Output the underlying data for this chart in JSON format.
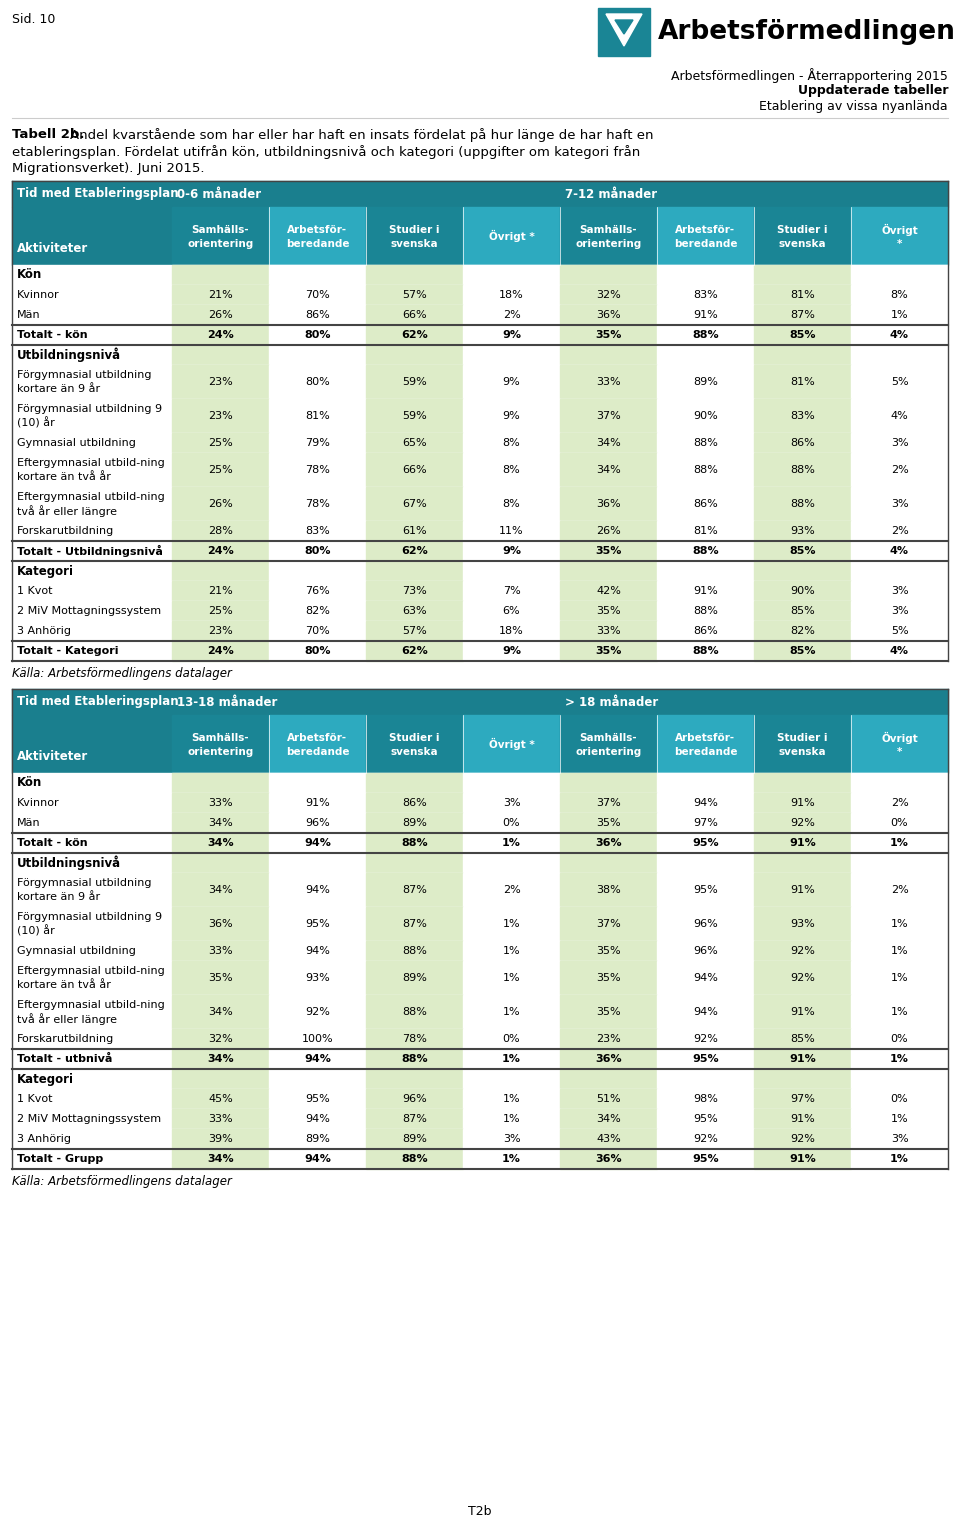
{
  "page_label": "Sid. 10",
  "logo_text": "Arbetsförmedlingen",
  "subtitle_lines": [
    "Arbetsförmedlingen - Återrapportering 2015",
    "Uppdaterade tabeller",
    "Etablering av vissa nyanlända"
  ],
  "caption_bold": "Tabell 2b.",
  "caption_rest": " Andel kvarstående som har eller har haft en insats fördelat på hur länge de har haft en etableringsplan. Fördelat utifrån kön, utbildningsnivå och kategori (uppgifter om kategori från Migrationsverket). Juni 2015.",
  "source_text": "Källa: Arbetsförmedlingens datalager",
  "header_bg": "#1a7f8e",
  "header_text": "#ffffff",
  "subheader_bg": "#2daabf",
  "col_bg_light": "#ddecc8",
  "col_bg_white": "#ffffff",
  "table1": {
    "period1": "0-6 månader",
    "period2": "7-12 månader",
    "col_label": "Aktiviteter",
    "row_label": "Tid med Etableringsplan",
    "sections": [
      {
        "section_header": "Kön",
        "rows": [
          [
            "Kvinnor",
            "21%",
            "70%",
            "57%",
            "18%",
            "32%",
            "83%",
            "81%",
            "8%"
          ],
          [
            "Män",
            "26%",
            "86%",
            "66%",
            "2%",
            "36%",
            "91%",
            "87%",
            "1%"
          ]
        ],
        "total_row": [
          "Totalt - kön",
          "24%",
          "80%",
          "62%",
          "9%",
          "35%",
          "88%",
          "85%",
          "4%"
        ]
      },
      {
        "section_header": "Utbildningsnivå",
        "rows": [
          [
            "Förgymnasial utbildning\nkortare än 9 år",
            "23%",
            "80%",
            "59%",
            "9%",
            "33%",
            "89%",
            "81%",
            "5%"
          ],
          [
            "Förgymnasial utbildning 9\n(10) år",
            "23%",
            "81%",
            "59%",
            "9%",
            "37%",
            "90%",
            "83%",
            "4%"
          ],
          [
            "Gymnasial utbildning",
            "25%",
            "79%",
            "65%",
            "8%",
            "34%",
            "88%",
            "86%",
            "3%"
          ],
          [
            "Eftergymnasial utbild-ning\nkortare än två år",
            "25%",
            "78%",
            "66%",
            "8%",
            "34%",
            "88%",
            "88%",
            "2%"
          ],
          [
            "Eftergymnasial utbild-ning\ntvå år eller längre",
            "26%",
            "78%",
            "67%",
            "8%",
            "36%",
            "86%",
            "88%",
            "3%"
          ],
          [
            "Forskarutbildning",
            "28%",
            "83%",
            "61%",
            "11%",
            "26%",
            "81%",
            "93%",
            "2%"
          ]
        ],
        "total_row": [
          "Totalt - Utbildningsnivå",
          "24%",
          "80%",
          "62%",
          "9%",
          "35%",
          "88%",
          "85%",
          "4%"
        ]
      },
      {
        "section_header": "Kategori",
        "rows": [
          [
            "1 Kvot",
            "21%",
            "76%",
            "73%",
            "7%",
            "42%",
            "91%",
            "90%",
            "3%"
          ],
          [
            "2 MiV Mottagningssystem",
            "25%",
            "82%",
            "63%",
            "6%",
            "35%",
            "88%",
            "85%",
            "3%"
          ],
          [
            "3 Anhörig",
            "23%",
            "70%",
            "57%",
            "18%",
            "33%",
            "86%",
            "82%",
            "5%"
          ]
        ],
        "total_row": [
          "Totalt - Kategori",
          "24%",
          "80%",
          "62%",
          "9%",
          "35%",
          "88%",
          "85%",
          "4%"
        ]
      }
    ]
  },
  "table2": {
    "period1": "13-18 månader",
    "period2": "> 18 månader",
    "col_label": "Aktiviteter",
    "row_label": "Tid med Etableringsplan",
    "sections": [
      {
        "section_header": "Kön",
        "rows": [
          [
            "Kvinnor",
            "33%",
            "91%",
            "86%",
            "3%",
            "37%",
            "94%",
            "91%",
            "2%"
          ],
          [
            "Män",
            "34%",
            "96%",
            "89%",
            "0%",
            "35%",
            "97%",
            "92%",
            "0%"
          ]
        ],
        "total_row": [
          "Totalt - kön",
          "34%",
          "94%",
          "88%",
          "1%",
          "36%",
          "95%",
          "91%",
          "1%"
        ]
      },
      {
        "section_header": "Utbildningsnivå",
        "rows": [
          [
            "Förgymnasial utbildning\nkortare än 9 år",
            "34%",
            "94%",
            "87%",
            "2%",
            "38%",
            "95%",
            "91%",
            "2%"
          ],
          [
            "Förgymnasial utbildning 9\n(10) år",
            "36%",
            "95%",
            "87%",
            "1%",
            "37%",
            "96%",
            "93%",
            "1%"
          ],
          [
            "Gymnasial utbildning",
            "33%",
            "94%",
            "88%",
            "1%",
            "35%",
            "96%",
            "92%",
            "1%"
          ],
          [
            "Eftergymnasial utbild-ning\nkortare än två år",
            "35%",
            "93%",
            "89%",
            "1%",
            "35%",
            "94%",
            "92%",
            "1%"
          ],
          [
            "Eftergymnasial utbild-ning\ntvå år eller längre",
            "34%",
            "92%",
            "88%",
            "1%",
            "35%",
            "94%",
            "91%",
            "1%"
          ],
          [
            "Forskarutbildning",
            "32%",
            "100%",
            "78%",
            "0%",
            "23%",
            "92%",
            "85%",
            "0%"
          ]
        ],
        "total_row": [
          "Totalt - utbnivå",
          "34%",
          "94%",
          "88%",
          "1%",
          "36%",
          "95%",
          "91%",
          "1%"
        ]
      },
      {
        "section_header": "Kategori",
        "rows": [
          [
            "1 Kvot",
            "45%",
            "95%",
            "96%",
            "1%",
            "51%",
            "98%",
            "97%",
            "0%"
          ],
          [
            "2 MiV Mottagningssystem",
            "33%",
            "94%",
            "87%",
            "1%",
            "34%",
            "95%",
            "91%",
            "1%"
          ],
          [
            "3 Anhörig",
            "39%",
            "89%",
            "89%",
            "3%",
            "43%",
            "92%",
            "92%",
            "3%"
          ]
        ],
        "total_row": [
          "Totalt - Grupp",
          "34%",
          "94%",
          "88%",
          "1%",
          "36%",
          "95%",
          "91%",
          "1%"
        ]
      }
    ]
  },
  "footer_text": "T2b"
}
